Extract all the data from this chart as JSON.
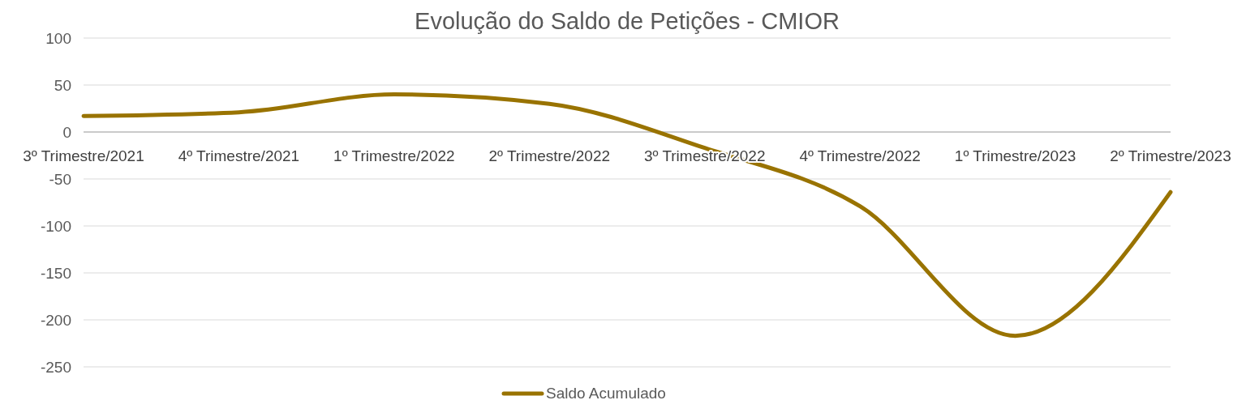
{
  "chart_data": {
    "type": "line",
    "title": "Evolução do Saldo de Petições - CMIOR",
    "categories": [
      "3º Trimestre/2021",
      "4º Trimestre/2021",
      "1º Trimestre/2022",
      "2º Trimestre/2022",
      "3º Trimestre/2022",
      "4º Trimestre/2022",
      "1º Trimestre/2023",
      "2º Trimestre/2023"
    ],
    "series": [
      {
        "name": "Saldo Acumulado",
        "color": "#997300",
        "values": [
          17,
          21,
          40,
          30,
          -17,
          -79,
          -217,
          -64
        ]
      }
    ],
    "ylim": [
      -250,
      100
    ],
    "yticks": [
      -250,
      -200,
      -150,
      -100,
      -50,
      0,
      50,
      100
    ],
    "grid": "y",
    "legend": "bottom",
    "marker": "none",
    "line_style": "solid"
  }
}
